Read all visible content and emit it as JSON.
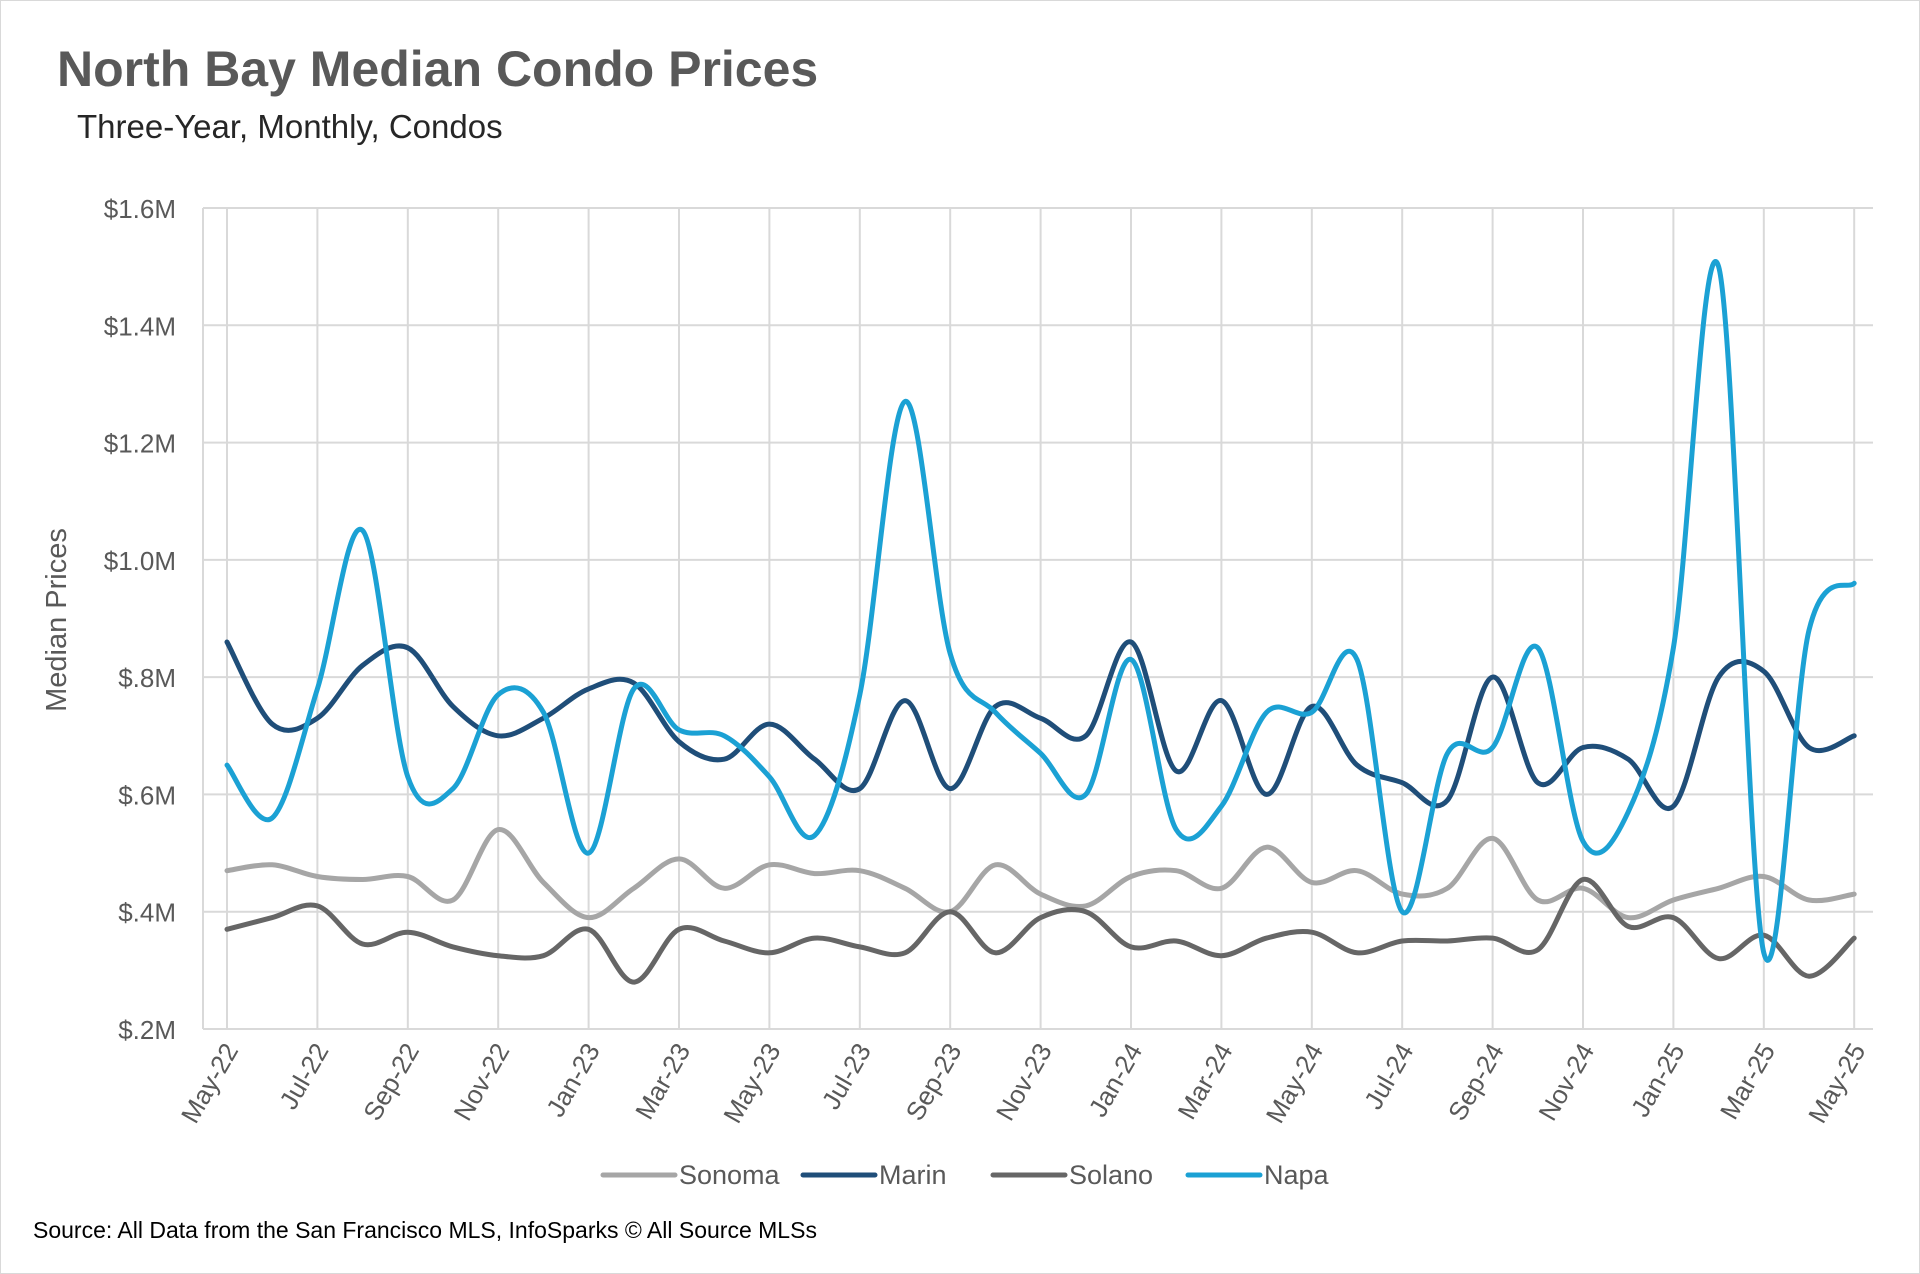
{
  "chart_data": {
    "type": "line",
    "title": "North Bay Median Condo Prices",
    "subtitle": "Three-Year, Monthly, Condos",
    "xlabel": "",
    "ylabel": "Median Prices",
    "ylim": [
      200000,
      1600000
    ],
    "yticks": [
      {
        "value": 200000,
        "label": "$.2M"
      },
      {
        "value": 400000,
        "label": "$.4M"
      },
      {
        "value": 600000,
        "label": "$.6M"
      },
      {
        "value": 800000,
        "label": "$.8M"
      },
      {
        "value": 1000000,
        "label": "$1.0M"
      },
      {
        "value": 1200000,
        "label": "$1.2M"
      },
      {
        "value": 1400000,
        "label": "$1.4M"
      },
      {
        "value": 1600000,
        "label": "$1.6M"
      }
    ],
    "x": [
      "May-22",
      "Jun-22",
      "Jul-22",
      "Aug-22",
      "Sep-22",
      "Oct-22",
      "Nov-22",
      "Dec-22",
      "Jan-23",
      "Feb-23",
      "Mar-23",
      "Apr-23",
      "May-23",
      "Jun-23",
      "Jul-23",
      "Aug-23",
      "Sep-23",
      "Oct-23",
      "Nov-23",
      "Dec-23",
      "Jan-24",
      "Feb-24",
      "Mar-24",
      "Apr-24",
      "May-24",
      "Jun-24",
      "Jul-24",
      "Aug-24",
      "Sep-24",
      "Oct-24",
      "Nov-24",
      "Dec-24",
      "Jan-25",
      "Feb-25",
      "Mar-25",
      "Apr-25",
      "May-25"
    ],
    "xticks": [
      "May-22",
      "Jul-22",
      "Sep-22",
      "Nov-22",
      "Jan-23",
      "Mar-23",
      "May-23",
      "Jul-23",
      "Sep-23",
      "Nov-23",
      "Jan-24",
      "Mar-24",
      "May-24",
      "Jul-24",
      "Sep-24",
      "Nov-24",
      "Jan-25",
      "Mar-25",
      "May-25"
    ],
    "grid": true,
    "legend_position": "bottom",
    "series": [
      {
        "name": "Sonoma",
        "color": "#a6a6a6",
        "values": [
          470000,
          480000,
          460000,
          455000,
          460000,
          420000,
          540000,
          450000,
          390000,
          440000,
          490000,
          440000,
          480000,
          465000,
          470000,
          440000,
          400000,
          480000,
          430000,
          410000,
          460000,
          470000,
          440000,
          510000,
          450000,
          470000,
          430000,
          440000,
          525000,
          420000,
          440000,
          390000,
          420000,
          440000,
          460000,
          420000,
          430000
        ]
      },
      {
        "name": "Marin",
        "color": "#1f4e79",
        "values": [
          860000,
          720000,
          730000,
          820000,
          850000,
          750000,
          700000,
          730000,
          780000,
          790000,
          690000,
          660000,
          720000,
          660000,
          610000,
          760000,
          610000,
          750000,
          730000,
          700000,
          860000,
          640000,
          760000,
          600000,
          750000,
          650000,
          620000,
          590000,
          800000,
          620000,
          680000,
          660000,
          580000,
          800000,
          810000,
          680000,
          700000
        ]
      },
      {
        "name": "Solano",
        "color": "#666666",
        "values": [
          370000,
          390000,
          410000,
          345000,
          365000,
          340000,
          325000,
          325000,
          370000,
          280000,
          370000,
          350000,
          330000,
          355000,
          340000,
          330000,
          400000,
          330000,
          390000,
          400000,
          340000,
          350000,
          325000,
          355000,
          365000,
          330000,
          350000,
          350000,
          355000,
          335000,
          455000,
          375000,
          390000,
          320000,
          360000,
          290000,
          355000
        ]
      },
      {
        "name": "Napa",
        "color": "#1ba1d4",
        "values": [
          650000,
          560000,
          780000,
          1050000,
          630000,
          610000,
          770000,
          740000,
          500000,
          780000,
          710000,
          700000,
          630000,
          530000,
          770000,
          1270000,
          840000,
          740000,
          670000,
          600000,
          830000,
          540000,
          580000,
          740000,
          740000,
          830000,
          400000,
          670000,
          680000,
          850000,
          520000,
          570000,
          850000,
          1500000,
          330000,
          880000,
          960000
        ]
      }
    ],
    "source": "Source: All Data from the San Francisco MLS, InfoSparks © All Source MLSs"
  }
}
